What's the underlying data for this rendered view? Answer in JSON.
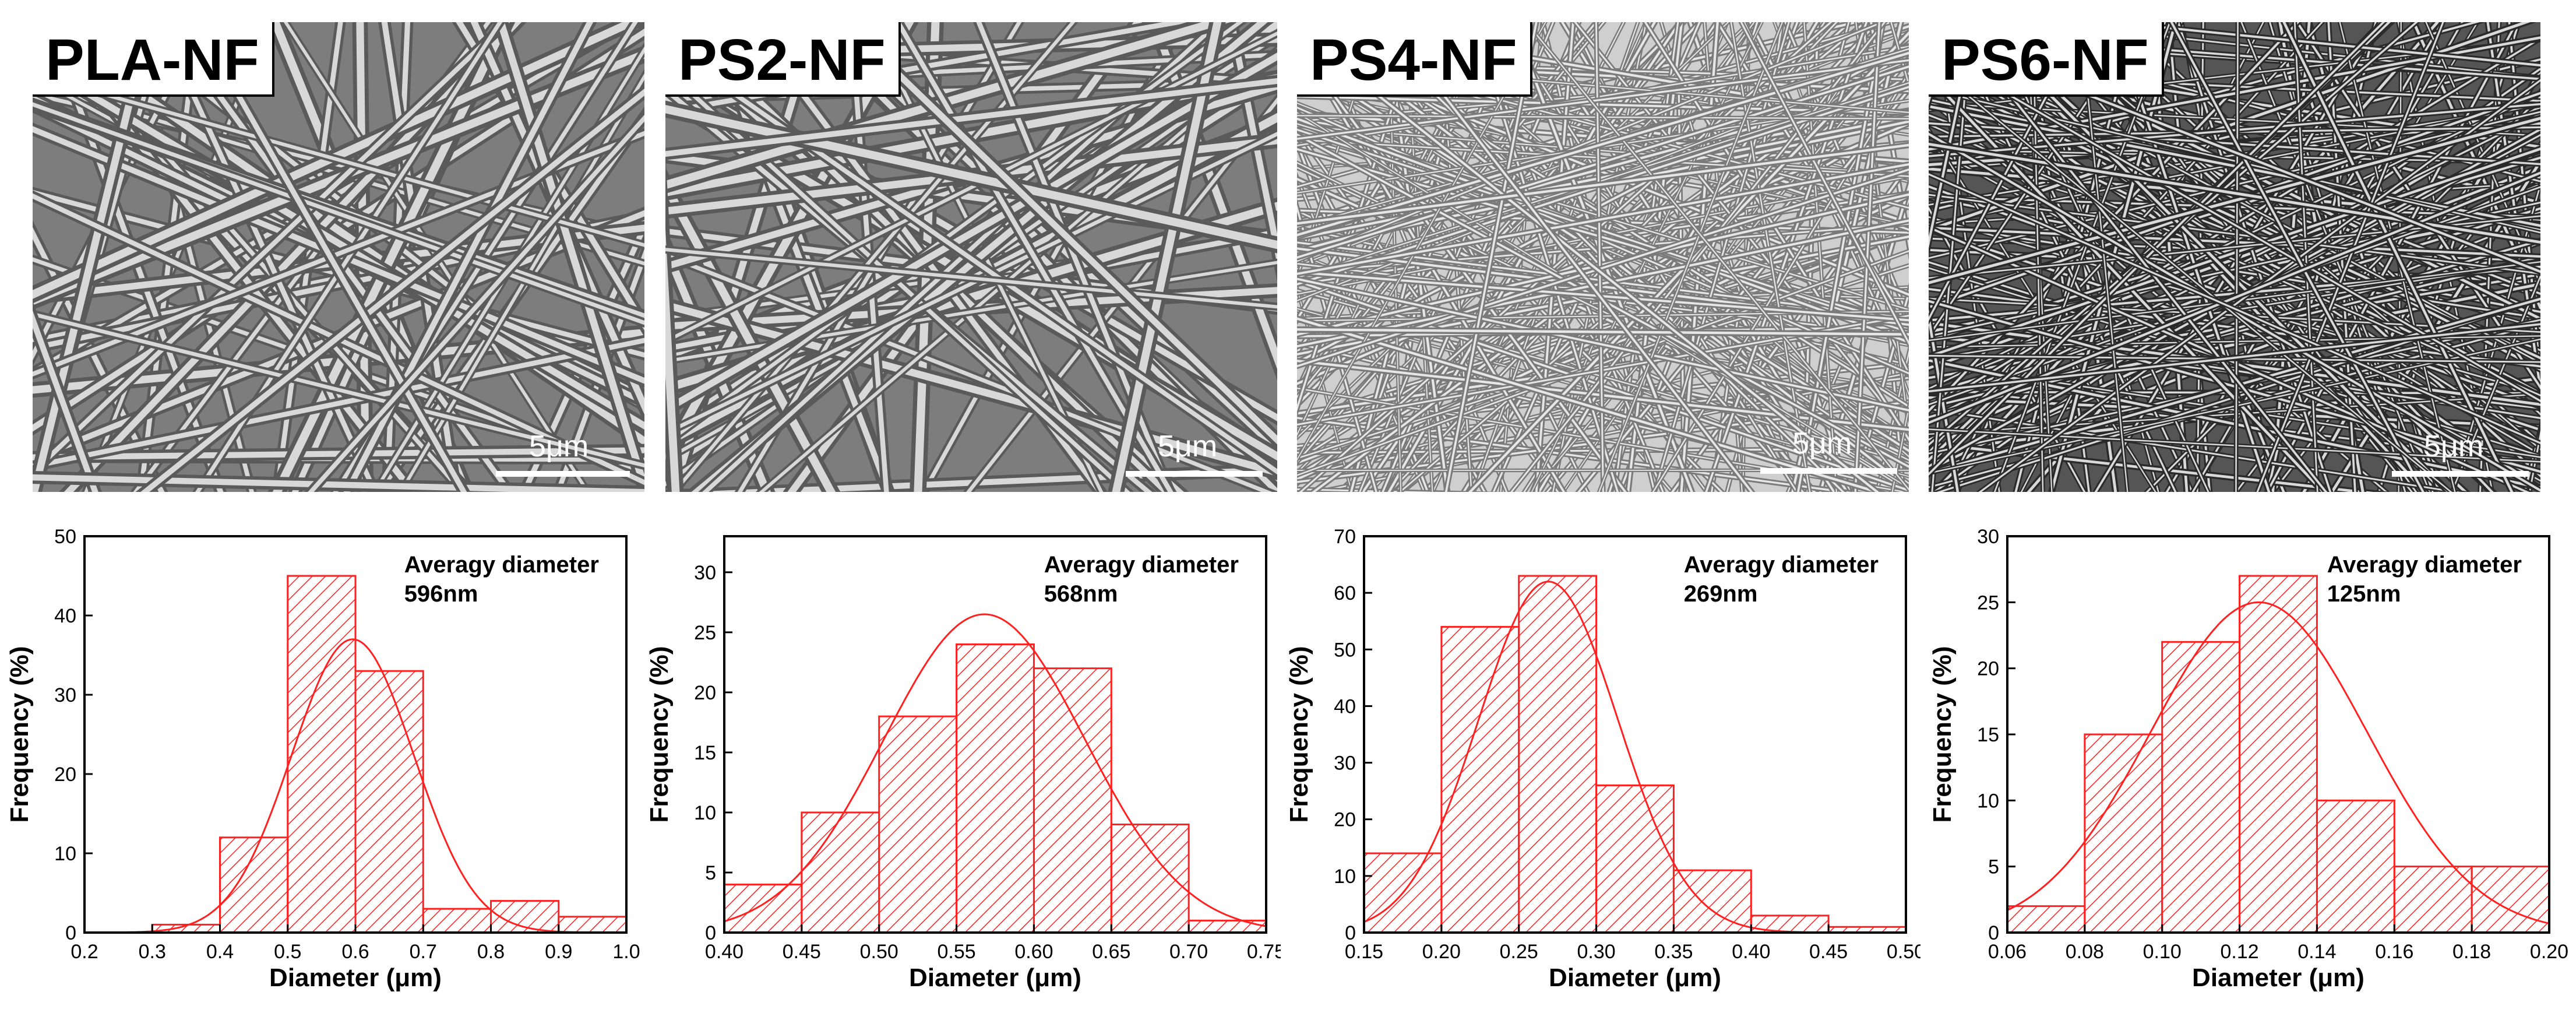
{
  "panels": [
    {
      "sem": {
        "label": "PLA-NF",
        "scale_label": "5μm",
        "tone": "light"
      },
      "chart_data": {
        "type": "bar",
        "bin_edges": [
          0.3,
          0.4,
          0.5,
          0.6,
          0.7,
          0.8,
          0.9,
          1.0
        ],
        "values": [
          1,
          12,
          45,
          33,
          3,
          4,
          2
        ],
        "fit_curve": {
          "type": "gaussian",
          "mean": 0.596,
          "peak": 37,
          "sigma": 0.09
        },
        "annotation_line1": "Averagy diameter",
        "annotation_line2": "596nm",
        "xlabel": "Diameter (μm)",
        "ylabel": "Frequency (%)",
        "xlim": [
          0.2,
          1.0
        ],
        "ylim": [
          0,
          50
        ],
        "xticks": [
          "0.2",
          "0.3",
          "0.4",
          "0.5",
          "0.6",
          "0.7",
          "0.8",
          "0.9",
          "1.0"
        ],
        "yticks": [
          "0",
          "10",
          "20",
          "30",
          "40",
          "50"
        ],
        "color": "#ff2020"
      }
    },
    {
      "sem": {
        "label": "PS2-NF",
        "scale_label": "5μm",
        "tone": "light"
      },
      "chart_data": {
        "type": "bar",
        "bin_edges": [
          0.4,
          0.45,
          0.5,
          0.55,
          0.6,
          0.65,
          0.7,
          0.75
        ],
        "values": [
          4,
          10,
          18,
          24,
          22,
          9,
          1
        ],
        "fit_curve": {
          "type": "gaussian",
          "mean": 0.568,
          "peak": 26.5,
          "sigma": 0.065
        },
        "annotation_line1": "Averagy diameter",
        "annotation_line2": "568nm",
        "xlabel": "Diameter (μm)",
        "ylabel": "Frequency (%)",
        "xlim": [
          0.4,
          0.75
        ],
        "ylim": [
          0,
          33
        ],
        "xticks": [
          "0.40",
          "0.45",
          "0.50",
          "0.55",
          "0.60",
          "0.65",
          "0.70",
          "0.75"
        ],
        "yticks": [
          "0",
          "5",
          "10",
          "15",
          "20",
          "25",
          "30"
        ],
        "color": "#ff2020"
      }
    },
    {
      "sem": {
        "label": "PS4-NF",
        "scale_label": "5μm",
        "tone": "mid"
      },
      "chart_data": {
        "type": "bar",
        "bin_edges": [
          0.15,
          0.2,
          0.25,
          0.3,
          0.35,
          0.4,
          0.45,
          0.5
        ],
        "values": [
          14,
          54,
          63,
          26,
          11,
          3,
          1
        ],
        "fit_curve": {
          "type": "gaussian",
          "mean": 0.269,
          "peak": 62,
          "sigma": 0.045
        },
        "annotation_line1": "Averagy diameter",
        "annotation_line2": "269nm",
        "xlabel": "Diameter (μm)",
        "ylabel": "Frequency (%)",
        "xlim": [
          0.15,
          0.5
        ],
        "ylim": [
          0,
          70
        ],
        "xticks": [
          "0.15",
          "0.20",
          "0.25",
          "0.30",
          "0.35",
          "0.40",
          "0.45",
          "0.50"
        ],
        "yticks": [
          "0",
          "10",
          "20",
          "30",
          "40",
          "50",
          "60",
          "70"
        ],
        "color": "#ff2020"
      }
    },
    {
      "sem": {
        "label": "PS6-NF",
        "scale_label": "5μm",
        "tone": "dark"
      },
      "chart_data": {
        "type": "bar",
        "bin_edges": [
          0.06,
          0.08,
          0.1,
          0.12,
          0.14,
          0.16,
          0.18,
          0.2
        ],
        "values": [
          2,
          15,
          22,
          27,
          10,
          5,
          5
        ],
        "fit_curve": {
          "type": "gaussian",
          "mean": 0.125,
          "peak": 25,
          "sigma": 0.028
        },
        "annotation_line1": "Averagy diameter",
        "annotation_line2": "125nm",
        "xlabel": "Diameter (μm)",
        "ylabel": "Frequency (%)",
        "xlim": [
          0.06,
          0.2
        ],
        "ylim": [
          0,
          30
        ],
        "xticks": [
          "0.06",
          "0.08",
          "0.10",
          "0.12",
          "0.14",
          "0.16",
          "0.18",
          "0.20"
        ],
        "yticks": [
          "0",
          "5",
          "10",
          "15",
          "20",
          "25",
          "30"
        ],
        "color": "#ff2020"
      }
    }
  ]
}
